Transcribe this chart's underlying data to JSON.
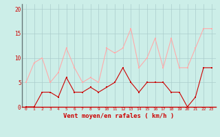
{
  "x": [
    0,
    1,
    2,
    3,
    4,
    5,
    6,
    7,
    8,
    9,
    10,
    11,
    12,
    13,
    14,
    15,
    16,
    17,
    18,
    19,
    20,
    21,
    22,
    23
  ],
  "rafales": [
    5,
    9,
    10,
    5,
    7,
    12,
    8,
    5,
    6,
    5,
    12,
    11,
    12,
    16,
    8,
    10,
    14,
    8,
    14,
    8,
    8,
    12,
    16,
    16
  ],
  "moyen": [
    0,
    0,
    3,
    3,
    2,
    6,
    3,
    3,
    4,
    3,
    4,
    5,
    8,
    5,
    3,
    5,
    5,
    5,
    3,
    3,
    0,
    2,
    8,
    8
  ],
  "bg_color": "#cceee8",
  "grid_color": "#aacccc",
  "line_rafales_color": "#ffaaaa",
  "line_moyen_color": "#cc0000",
  "xlabel": "Vent moyen/en rafales ( km/h )",
  "xlabel_color": "#cc0000",
  "ylabel_ticks": [
    0,
    5,
    10,
    15,
    20
  ],
  "ylim": [
    0,
    21
  ],
  "xlim": [
    -0.5,
    23.5
  ]
}
